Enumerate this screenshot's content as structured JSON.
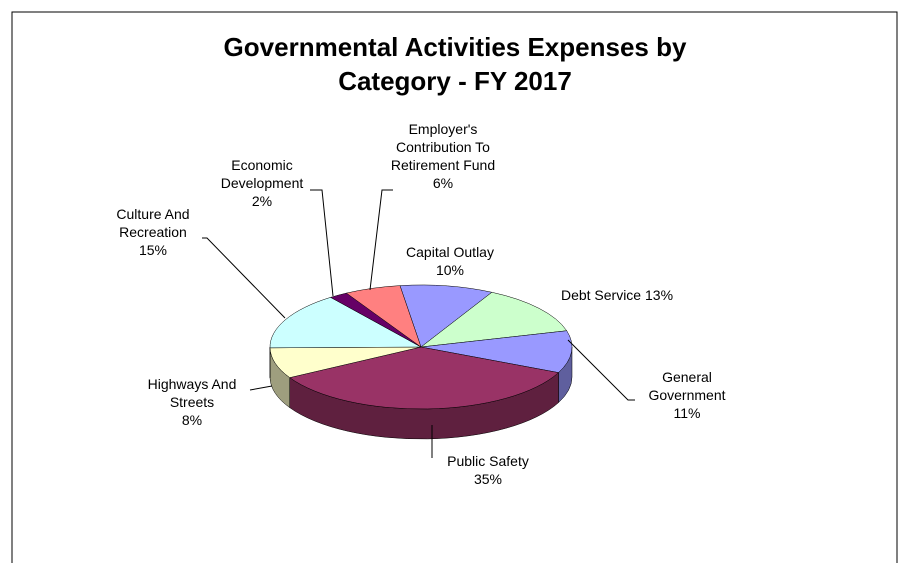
{
  "chart_data": {
    "type": "pie",
    "title": "Governmental Activities Expenses by Category - FY 2017",
    "categories": [
      "Capital Outlay",
      "Debt Service",
      "General Government",
      "Public Safety",
      "Highways And Streets",
      "Culture And Recreation",
      "Economic Development",
      "Employer's Contribution To Retirement Fund"
    ],
    "values": [
      10,
      13,
      11,
      35,
      8,
      15,
      2,
      6
    ],
    "value_labels": [
      "10%",
      "13%",
      "11%",
      "35%",
      "8%",
      "15%",
      "2%",
      "6%"
    ],
    "colors": [
      "#9999ff",
      "#ccffcc",
      "#9999ff",
      "#993366",
      "#ffffcc",
      "#ccffff",
      "#660066",
      "#ff8080"
    ]
  }
}
